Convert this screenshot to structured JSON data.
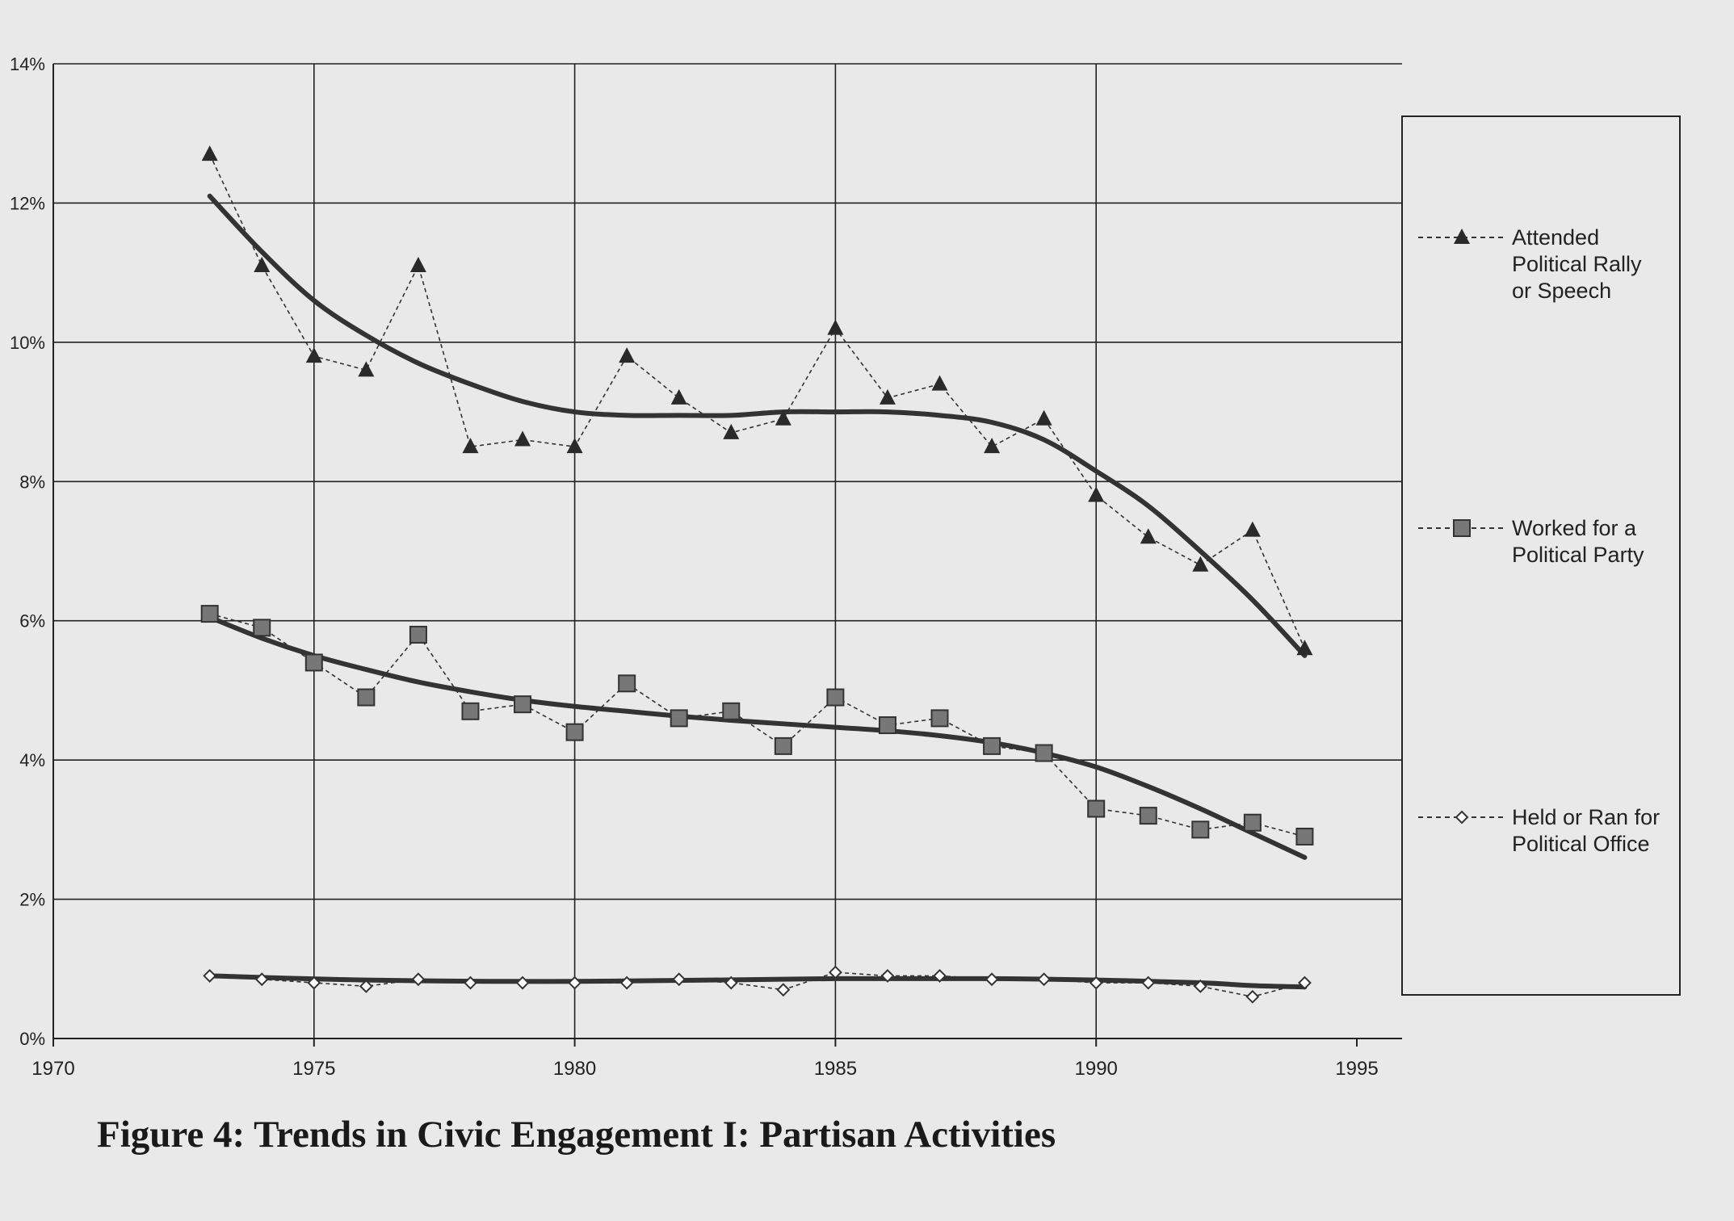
{
  "chart_data": {
    "type": "line",
    "title": "Figure 4: Trends in Civic Engagement I: Partisan Activities",
    "xlabel": "",
    "ylabel": "",
    "xlim": [
      1970,
      1995
    ],
    "ylim": [
      0,
      14
    ],
    "x_ticks": [
      "1970",
      "1975",
      "1980",
      "1985",
      "1990",
      "1995"
    ],
    "x_tick_values": [
      1970,
      1975,
      1980,
      1985,
      1990,
      1995
    ],
    "y_ticks": [
      "0%",
      "2%",
      "4%",
      "6%",
      "8%",
      "10%",
      "12%",
      "14%"
    ],
    "y_tick_values": [
      0,
      2,
      4,
      6,
      8,
      10,
      12,
      14
    ],
    "grid": true,
    "legend_position": "right",
    "x": [
      1973,
      1974,
      1975,
      1976,
      1977,
      1978,
      1979,
      1980,
      1981,
      1982,
      1983,
      1984,
      1985,
      1986,
      1987,
      1988,
      1989,
      1990,
      1991,
      1992,
      1993,
      1994
    ],
    "series": [
      {
        "name": "Attended Political Rally or Speech",
        "legend_lines": [
          "Attended",
          "Political Rally",
          "or Speech"
        ],
        "marker": "triangle",
        "values": [
          12.7,
          11.1,
          9.8,
          9.6,
          11.1,
          8.5,
          8.6,
          8.5,
          9.8,
          9.2,
          8.7,
          8.9,
          10.2,
          9.2,
          9.4,
          8.5,
          8.9,
          7.8,
          7.2,
          6.8,
          7.3,
          5.6
        ],
        "trend_x": [
          1973,
          1974,
          1975,
          1976,
          1977,
          1978,
          1979,
          1980,
          1981,
          1982,
          1983,
          1984,
          1985,
          1986,
          1987,
          1988,
          1989,
          1990,
          1991,
          1992,
          1993,
          1994
        ],
        "trend": [
          12.1,
          11.3,
          10.6,
          10.1,
          9.7,
          9.4,
          9.15,
          9.0,
          8.95,
          8.95,
          8.95,
          9.0,
          9.0,
          9.0,
          8.95,
          8.85,
          8.6,
          8.15,
          7.65,
          7.0,
          6.3,
          5.5
        ]
      },
      {
        "name": "Worked for a Political Party",
        "legend_lines": [
          "Worked for a",
          "Political Party"
        ],
        "marker": "square",
        "values": [
          6.1,
          5.9,
          5.4,
          4.9,
          5.8,
          4.7,
          4.8,
          4.4,
          5.1,
          4.6,
          4.7,
          4.2,
          4.9,
          4.5,
          4.6,
          4.2,
          4.1,
          3.3,
          3.2,
          3.0,
          3.1,
          2.9
        ],
        "trend_x": [
          1973,
          1974,
          1975,
          1976,
          1977,
          1978,
          1979,
          1980,
          1981,
          1982,
          1983,
          1984,
          1985,
          1986,
          1987,
          1988,
          1989,
          1990,
          1991,
          1992,
          1993,
          1994
        ],
        "trend": [
          6.05,
          5.75,
          5.5,
          5.3,
          5.12,
          4.98,
          4.86,
          4.77,
          4.7,
          4.63,
          4.57,
          4.52,
          4.47,
          4.42,
          4.35,
          4.25,
          4.1,
          3.9,
          3.62,
          3.3,
          2.95,
          2.6
        ]
      },
      {
        "name": "Held or Ran for Political Office",
        "legend_lines": [
          "Held or Ran for",
          "Political Office"
        ],
        "marker": "diamond",
        "values": [
          0.9,
          0.85,
          0.8,
          0.75,
          0.85,
          0.8,
          0.8,
          0.8,
          0.8,
          0.85,
          0.8,
          0.7,
          0.95,
          0.9,
          0.9,
          0.85,
          0.85,
          0.8,
          0.8,
          0.75,
          0.6,
          0.8
        ],
        "trend_x": [
          1973,
          1976,
          1980,
          1985,
          1988,
          1990,
          1992,
          1993,
          1994
        ],
        "trend": [
          0.9,
          0.84,
          0.82,
          0.86,
          0.86,
          0.84,
          0.8,
          0.76,
          0.74
        ]
      }
    ]
  }
}
